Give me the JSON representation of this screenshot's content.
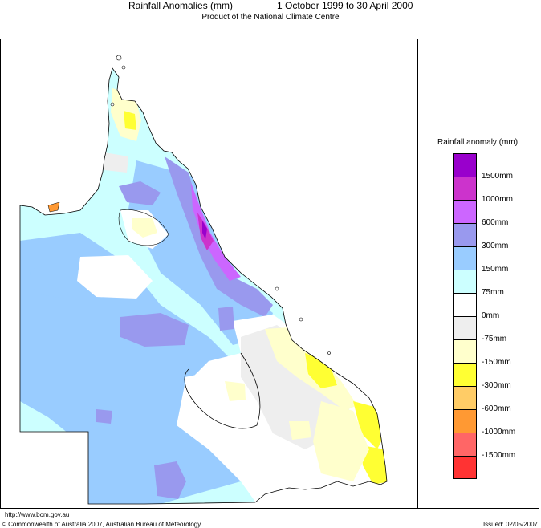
{
  "header": {
    "title": "Rainfall Anomalies (mm)",
    "period": "1 October 1999 to 30 April 2000",
    "subtitle": "Product of the National Climate Centre"
  },
  "legend": {
    "title": "Rainfall anomaly (mm)",
    "colors": [
      "#9900cc",
      "#cc33cc",
      "#cc66ff",
      "#9999ee",
      "#99ccff",
      "#ccffff",
      "#ffffff",
      "#eeeeee",
      "#ffffcc",
      "#ffff33",
      "#ffcc66",
      "#ff9933",
      "#ff6666",
      "#ff3333"
    ],
    "labels": [
      "1500mm",
      "1000mm",
      "600mm",
      "300mm",
      "150mm",
      "75mm",
      "0mm",
      "-75mm",
      "-150mm",
      "-300mm",
      "-600mm",
      "-1000mm",
      "-1500mm"
    ]
  },
  "footer": {
    "url": "http://www.bom.gov.au",
    "copyright": "© Commonwealth of Australia 2007, Australian Bureau of Meteorology",
    "issued": "Issued: 02/05/2007"
  }
}
